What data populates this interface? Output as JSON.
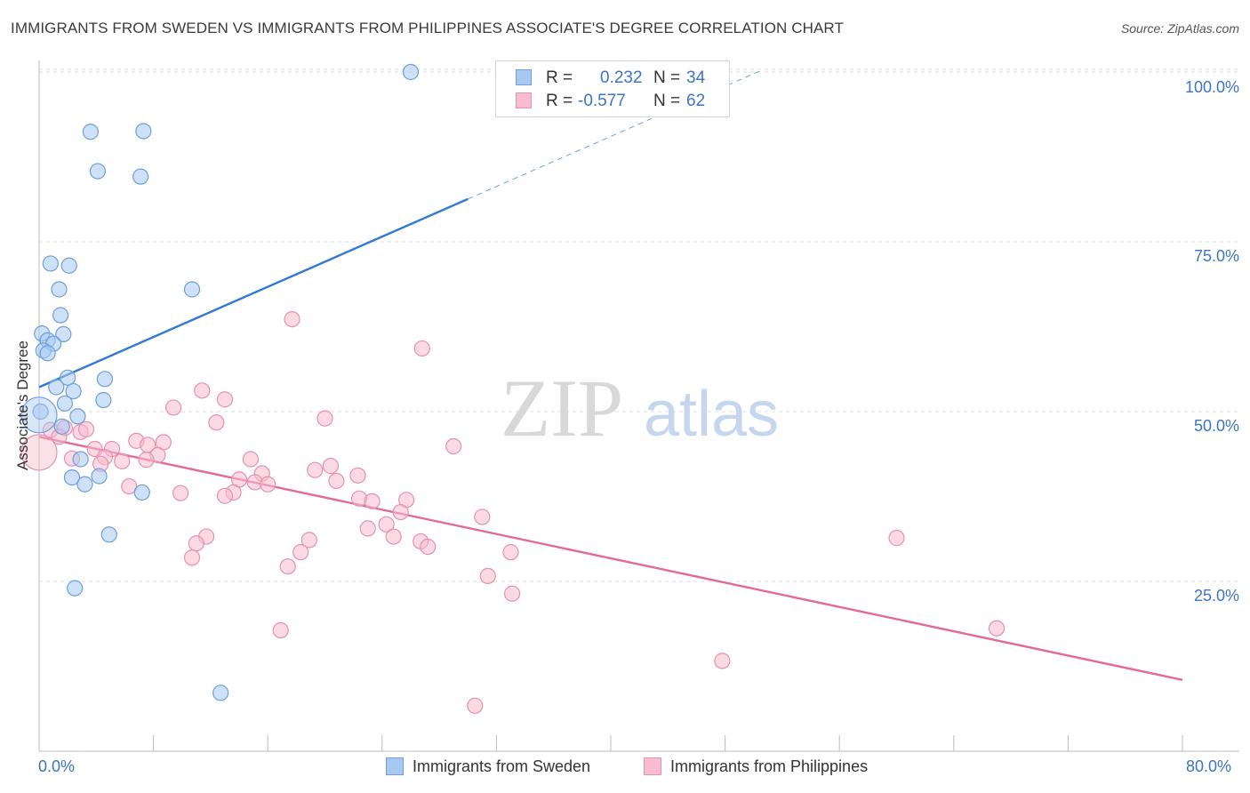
{
  "header": {
    "title": "IMMIGRANTS FROM SWEDEN VS IMMIGRANTS FROM PHILIPPINES ASSOCIATE'S DEGREE CORRELATION CHART",
    "source": "Source: ZipAtlas.com"
  },
  "watermark": {
    "zip": "ZIP",
    "atlas": "atlas"
  },
  "legend": {
    "sweden": {
      "r_label": "R =",
      "r_value": "0.232",
      "n_label": "N =",
      "n_value": "34",
      "name": "Immigrants from Sweden"
    },
    "philippines": {
      "r_label": "R =",
      "r_value": "-0.577",
      "n_label": "N =",
      "n_value": "62",
      "name": "Immigrants from Philippines"
    }
  },
  "colors": {
    "sweden_fill": "#a8c8f0",
    "sweden_stroke": "#6d9fdc",
    "sweden_line": "#3278d4",
    "philippines_fill": "#f7bccd",
    "philippines_stroke": "#e691ae",
    "philippines_line": "#e46a96",
    "tick_label": "#3b74c9",
    "grid": "#dcdcdc"
  },
  "chart_data": {
    "type": "scatter",
    "title": "IMMIGRANTS FROM SWEDEN VS IMMIGRANTS FROM PHILIPPINES ASSOCIATE'S DEGREE CORRELATION CHART",
    "xlabel": "",
    "ylabel": "Associate's Degree",
    "xlim": [
      0,
      80
    ],
    "ylim": [
      0,
      105
    ],
    "x_tick_labels": [
      "0.0%",
      "80.0%"
    ],
    "y_ticks": [
      25,
      50,
      75,
      100
    ],
    "y_tick_labels": [
      "25.0%",
      "50.0%",
      "75.0%",
      "100.0%"
    ],
    "grid": true,
    "legend_position": "top-center",
    "series": [
      {
        "name": "Immigrants from Sweden",
        "points": [
          [
            26.0,
            100.0
          ],
          [
            3.6,
            91.2
          ],
          [
            7.3,
            91.3
          ],
          [
            4.1,
            85.4
          ],
          [
            7.1,
            84.6
          ],
          [
            0.8,
            71.8
          ],
          [
            2.1,
            71.5
          ],
          [
            1.4,
            68.0
          ],
          [
            10.7,
            68.0
          ],
          [
            1.5,
            64.2
          ],
          [
            0.2,
            61.5
          ],
          [
            1.7,
            61.4
          ],
          [
            0.6,
            60.5
          ],
          [
            1.0,
            60.0
          ],
          [
            0.3,
            59.0
          ],
          [
            0.6,
            58.6
          ],
          [
            2.0,
            55.0
          ],
          [
            4.6,
            54.8
          ],
          [
            1.2,
            53.6
          ],
          [
            2.4,
            53.0
          ],
          [
            4.5,
            51.7
          ],
          [
            1.8,
            51.2
          ],
          [
            0.1,
            50.0
          ],
          [
            2.7,
            49.3
          ],
          [
            1.6,
            47.8
          ],
          [
            2.9,
            43.0
          ],
          [
            2.3,
            40.3
          ],
          [
            4.2,
            40.5
          ],
          [
            3.2,
            39.3
          ],
          [
            7.2,
            38.1
          ],
          [
            4.9,
            31.9
          ],
          [
            2.5,
            24.0
          ],
          [
            12.7,
            8.6
          ],
          [
            0.0,
            49.5
          ]
        ],
        "trend": {
          "x": [
            0,
            30
          ],
          "y": [
            53.6,
            81.3
          ],
          "dashed_extension": [
            30,
            50.5
          ],
          "dashed_y": [
            81.3,
            100.2
          ]
        }
      },
      {
        "name": "Immigrants from Philippines",
        "points": [
          [
            17.7,
            63.6
          ],
          [
            26.8,
            59.3
          ],
          [
            13.0,
            51.8
          ],
          [
            11.4,
            53.1
          ],
          [
            9.4,
            50.6
          ],
          [
            20.0,
            49.0
          ],
          [
            12.4,
            48.4
          ],
          [
            0.8,
            47.3
          ],
          [
            1.8,
            47.6
          ],
          [
            2.9,
            47.0
          ],
          [
            3.3,
            47.4
          ],
          [
            1.4,
            46.3
          ],
          [
            6.8,
            45.7
          ],
          [
            8.7,
            45.5
          ],
          [
            7.6,
            45.1
          ],
          [
            29.0,
            44.9
          ],
          [
            3.9,
            44.5
          ],
          [
            5.1,
            44.5
          ],
          [
            8.3,
            43.6
          ],
          [
            4.6,
            43.3
          ],
          [
            2.3,
            43.1
          ],
          [
            7.5,
            42.9
          ],
          [
            5.8,
            42.7
          ],
          [
            4.3,
            42.3
          ],
          [
            14.8,
            43.0
          ],
          [
            20.4,
            42.0
          ],
          [
            19.3,
            41.4
          ],
          [
            15.6,
            40.9
          ],
          [
            22.3,
            40.6
          ],
          [
            14.0,
            40.0
          ],
          [
            15.1,
            39.6
          ],
          [
            20.8,
            39.8
          ],
          [
            16.0,
            39.3
          ],
          [
            6.3,
            39.0
          ],
          [
            9.9,
            38.0
          ],
          [
            13.6,
            38.1
          ],
          [
            13.0,
            37.6
          ],
          [
            22.4,
            37.2
          ],
          [
            25.7,
            37.0
          ],
          [
            23.3,
            36.8
          ],
          [
            25.3,
            35.2
          ],
          [
            31.0,
            34.5
          ],
          [
            24.3,
            33.4
          ],
          [
            23.0,
            32.8
          ],
          [
            0.0,
            44.0
          ],
          [
            11.7,
            31.6
          ],
          [
            24.8,
            31.6
          ],
          [
            18.9,
            31.1
          ],
          [
            26.7,
            30.9
          ],
          [
            11.0,
            30.6
          ],
          [
            27.2,
            30.1
          ],
          [
            18.3,
            29.3
          ],
          [
            33.0,
            29.3
          ],
          [
            60.0,
            31.4
          ],
          [
            10.7,
            28.5
          ],
          [
            17.4,
            27.2
          ],
          [
            31.4,
            25.8
          ],
          [
            33.1,
            23.2
          ],
          [
            67.0,
            18.1
          ],
          [
            16.9,
            17.8
          ],
          [
            47.8,
            13.3
          ],
          [
            30.5,
            6.7
          ]
        ],
        "trend": {
          "x": [
            0,
            80
          ],
          "y": [
            46.3,
            10.5
          ]
        }
      }
    ]
  }
}
